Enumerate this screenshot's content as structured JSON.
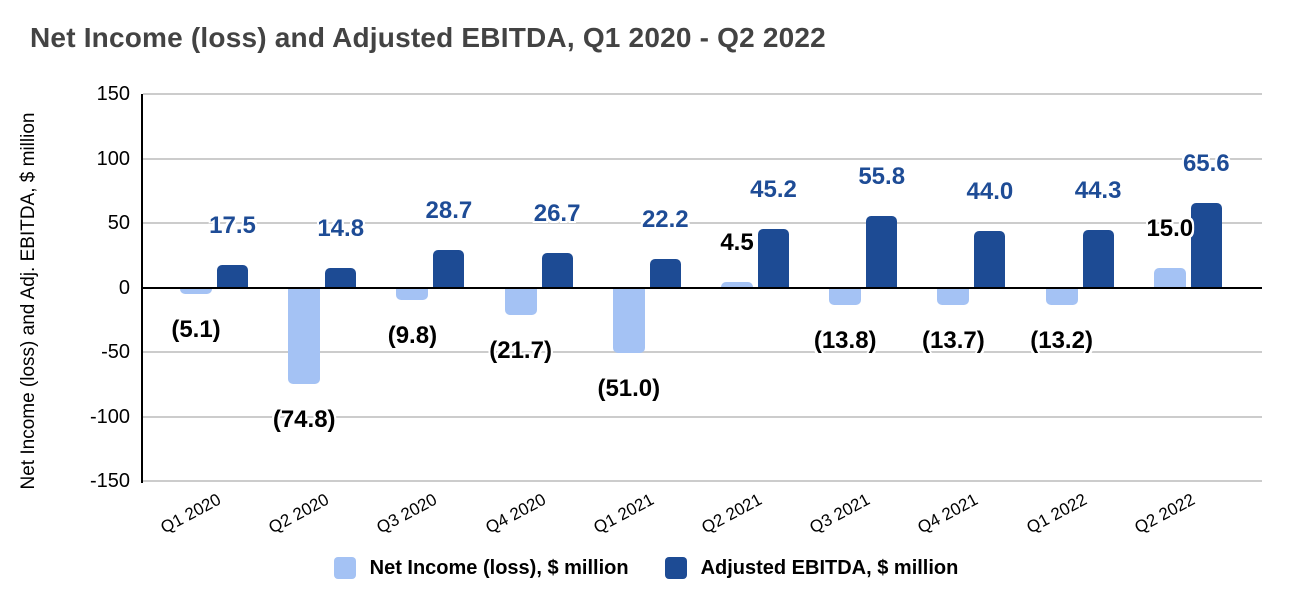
{
  "title": "Net Income (loss) and Adjusted EBITDA, Q1 2020 - Q2 2022",
  "y_axis_title": "Net Income (loss) and Adj. EBITDA, $ million",
  "colors": {
    "net_income": "#A4C2F4",
    "ebitda": "#1D4B94",
    "ebitda_label": "#1E4C96",
    "net_income_label": "#000000",
    "title": "#434343",
    "gridline": "#cccccc",
    "axis": "#000000"
  },
  "legend": {
    "items": [
      {
        "label": "Net Income (loss), $ million",
        "color": "#A4C2F4"
      },
      {
        "label": "Adjusted EBITDA, $ million",
        "color": "#1D4B94"
      }
    ]
  },
  "chart_data": {
    "type": "bar",
    "title": "Net Income (loss) and Adjusted EBITDA, Q1 2020 - Q2 2022",
    "ylabel": "Net Income (loss) and Adj. EBITDA, $ million",
    "xlabel": "",
    "categories": [
      "Q1 2020",
      "Q2 2020",
      "Q3 2020",
      "Q4 2020",
      "Q1 2021",
      "Q2 2021",
      "Q3 2021",
      "Q4 2021",
      "Q1 2022",
      "Q2 2022"
    ],
    "series": [
      {
        "name": "Net Income (loss), $ million",
        "color": "#A4C2F4",
        "values": [
          -5.1,
          -74.8,
          -9.8,
          -21.7,
          -51.0,
          4.5,
          -13.8,
          -13.7,
          -13.2,
          15.0
        ],
        "labels": [
          "(5.1)",
          "(74.8)",
          "(9.8)",
          "(21.7)",
          "(51.0)",
          "4.5",
          "(13.8)",
          "(13.7)",
          "(13.2)",
          "15.0"
        ]
      },
      {
        "name": "Adjusted EBITDA, $ million",
        "color": "#1D4B94",
        "values": [
          17.5,
          14.8,
          28.7,
          26.7,
          22.2,
          45.2,
          55.8,
          44.0,
          44.3,
          65.6
        ],
        "labels": [
          "17.5",
          "14.8",
          "28.7",
          "26.7",
          "22.2",
          "45.2",
          "55.8",
          "44.0",
          "44.3",
          "65.6"
        ]
      }
    ],
    "ylim": [
      -150,
      150
    ],
    "y_ticks": [
      150,
      100,
      50,
      0,
      -50,
      -100,
      -150
    ],
    "grid": true,
    "legend_position": "bottom"
  }
}
